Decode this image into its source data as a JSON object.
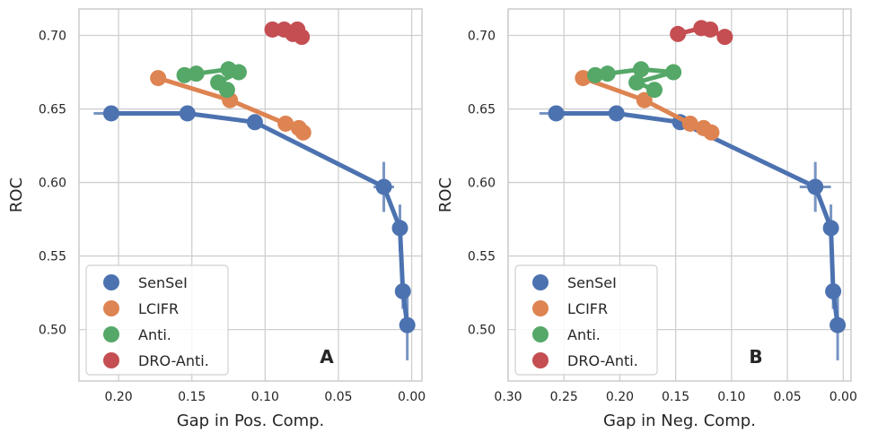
{
  "chart_data": [
    {
      "type": "line",
      "panel_label": "A",
      "xlabel": "Gap in Pos. Comp.",
      "ylabel": "ROC",
      "xlim": [
        0.227,
        -0.007
      ],
      "ylim": [
        0.465,
        0.718
      ],
      "x_inverted": true,
      "grid": true,
      "legend_position": "bottom-left",
      "xticks": [
        {
          "value": 0.2,
          "label": "0.20"
        },
        {
          "value": 0.15,
          "label": "0.15"
        },
        {
          "value": 0.1,
          "label": "0.10"
        },
        {
          "value": 0.05,
          "label": "0.05"
        },
        {
          "value": 0.0,
          "label": "0.00"
        }
      ],
      "yticks": [
        {
          "value": 0.7,
          "label": "0.70"
        },
        {
          "value": 0.65,
          "label": "0.65"
        },
        {
          "value": 0.6,
          "label": "0.60"
        },
        {
          "value": 0.55,
          "label": "0.55"
        },
        {
          "value": 0.5,
          "label": "0.50"
        }
      ],
      "series": [
        {
          "name": "SenSeI",
          "color": "#4c72b0",
          "points": [
            {
              "x": 0.205,
              "y": 0.647,
              "xerr": 0.012,
              "yerr": 0.002
            },
            {
              "x": 0.153,
              "y": 0.647,
              "xerr": 0.0,
              "yerr": 0.0
            },
            {
              "x": 0.107,
              "y": 0.641,
              "xerr": 0.005,
              "yerr": 0.0
            },
            {
              "x": 0.019,
              "y": 0.597,
              "xerr": 0.007,
              "yerr": 0.017
            },
            {
              "x": 0.008,
              "y": 0.569,
              "xerr": 0.0,
              "yerr": 0.016
            },
            {
              "x": 0.006,
              "y": 0.526,
              "xerr": 0.0,
              "yerr": 0.012
            },
            {
              "x": 0.003,
              "y": 0.503,
              "xerr": 0.0,
              "yerr": 0.024
            }
          ]
        },
        {
          "name": "LCIFR",
          "color": "#dd8452",
          "points": [
            {
              "x": 0.173,
              "y": 0.671
            },
            {
              "x": 0.124,
              "y": 0.656
            },
            {
              "x": 0.086,
              "y": 0.64
            },
            {
              "x": 0.077,
              "y": 0.637
            },
            {
              "x": 0.074,
              "y": 0.634
            }
          ]
        },
        {
          "name": "Anti.",
          "color": "#55a868",
          "points": [
            {
              "x": 0.155,
              "y": 0.673
            },
            {
              "x": 0.147,
              "y": 0.674
            },
            {
              "x": 0.125,
              "y": 0.677
            },
            {
              "x": 0.118,
              "y": 0.675
            },
            {
              "x": 0.132,
              "y": 0.668
            },
            {
              "x": 0.126,
              "y": 0.663
            }
          ]
        },
        {
          "name": "DRO-Anti.",
          "color": "#c44e52",
          "points": [
            {
              "x": 0.095,
              "y": 0.704
            },
            {
              "x": 0.087,
              "y": 0.704
            },
            {
              "x": 0.081,
              "y": 0.701
            },
            {
              "x": 0.078,
              "y": 0.704
            },
            {
              "x": 0.075,
              "y": 0.699
            }
          ]
        }
      ]
    },
    {
      "type": "line",
      "panel_label": "B",
      "xlabel": "Gap in Neg. Comp.",
      "ylabel": "ROC",
      "xlim": [
        0.3,
        -0.007
      ],
      "ylim": [
        0.465,
        0.718
      ],
      "x_inverted": true,
      "grid": true,
      "legend_position": "bottom-left",
      "xticks": [
        {
          "value": 0.3,
          "label": "0.30"
        },
        {
          "value": 0.25,
          "label": "0.25"
        },
        {
          "value": 0.2,
          "label": "0.20"
        },
        {
          "value": 0.15,
          "label": "0.15"
        },
        {
          "value": 0.1,
          "label": "0.10"
        },
        {
          "value": 0.05,
          "label": "0.05"
        },
        {
          "value": 0.0,
          "label": "0.00"
        }
      ],
      "yticks": [
        {
          "value": 0.7,
          "label": "0.70"
        },
        {
          "value": 0.65,
          "label": "0.65"
        },
        {
          "value": 0.6,
          "label": "0.60"
        },
        {
          "value": 0.55,
          "label": "0.55"
        },
        {
          "value": 0.5,
          "label": "0.50"
        }
      ],
      "series": [
        {
          "name": "SenSeI",
          "color": "#4c72b0",
          "points": [
            {
              "x": 0.257,
              "y": 0.647,
              "xerr": 0.015,
              "yerr": 0.002
            },
            {
              "x": 0.203,
              "y": 0.647,
              "xerr": 0.0,
              "yerr": 0.0
            },
            {
              "x": 0.146,
              "y": 0.641,
              "xerr": 0.007,
              "yerr": 0.0
            },
            {
              "x": 0.025,
              "y": 0.597,
              "xerr": 0.014,
              "yerr": 0.017
            },
            {
              "x": 0.011,
              "y": 0.569,
              "xerr": 0.0,
              "yerr": 0.016
            },
            {
              "x": 0.009,
              "y": 0.526,
              "xerr": 0.0,
              "yerr": 0.012
            },
            {
              "x": 0.005,
              "y": 0.503,
              "xerr": 0.0,
              "yerr": 0.024
            }
          ]
        },
        {
          "name": "LCIFR",
          "color": "#dd8452",
          "points": [
            {
              "x": 0.233,
              "y": 0.671
            },
            {
              "x": 0.178,
              "y": 0.656
            },
            {
              "x": 0.137,
              "y": 0.64
            },
            {
              "x": 0.125,
              "y": 0.637
            },
            {
              "x": 0.118,
              "y": 0.634
            }
          ]
        },
        {
          "name": "Anti.",
          "color": "#55a868",
          "points": [
            {
              "x": 0.222,
              "y": 0.673
            },
            {
              "x": 0.211,
              "y": 0.674
            },
            {
              "x": 0.181,
              "y": 0.677
            },
            {
              "x": 0.152,
              "y": 0.675
            },
            {
              "x": 0.185,
              "y": 0.668
            },
            {
              "x": 0.169,
              "y": 0.663
            }
          ]
        },
        {
          "name": "DRO-Anti.",
          "color": "#c44e52",
          "points": [
            {
              "x": 0.148,
              "y": 0.701
            },
            {
              "x": 0.127,
              "y": 0.705
            },
            {
              "x": 0.119,
              "y": 0.704
            },
            {
              "x": 0.106,
              "y": 0.699
            }
          ]
        }
      ]
    }
  ]
}
